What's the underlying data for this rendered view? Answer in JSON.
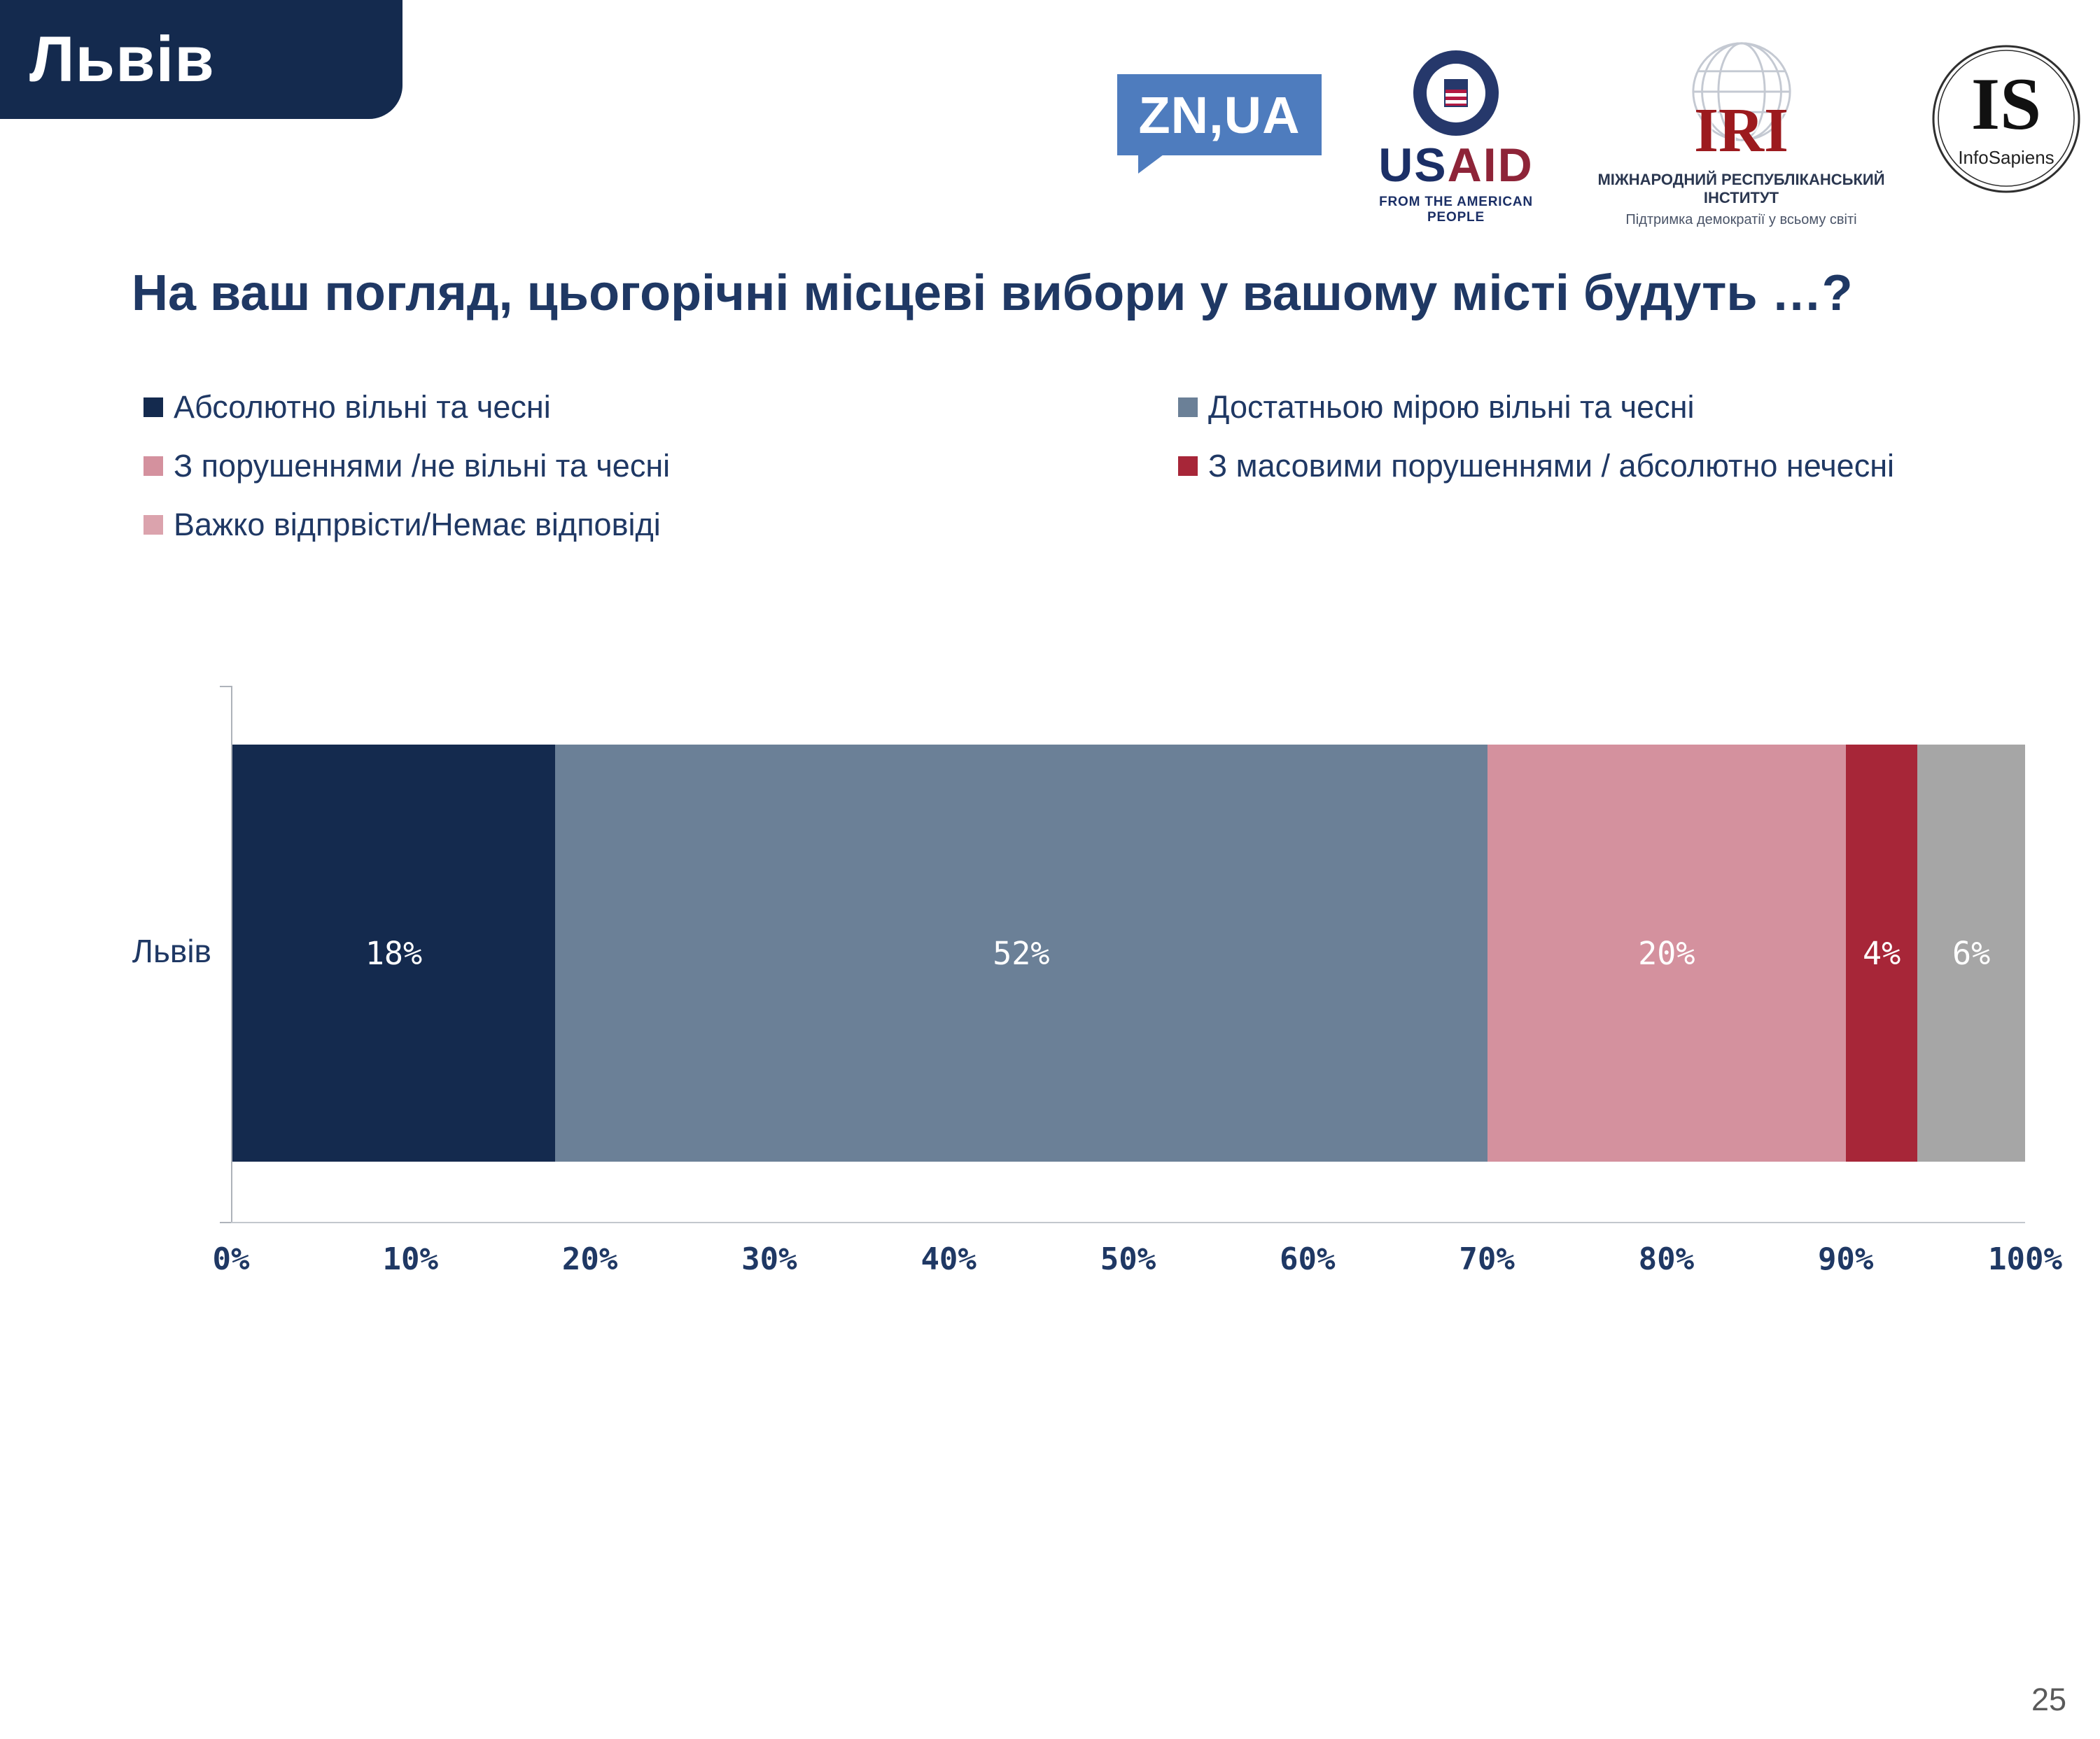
{
  "page": {
    "tab_title": "Львів",
    "page_number": "25"
  },
  "logos": {
    "znua": {
      "text": "ZN,UA"
    },
    "usaid": {
      "word_us": "US",
      "word_aid": "AID",
      "tagline": "FROM THE AMERICAN PEOPLE"
    },
    "iri": {
      "abbr": "IRI",
      "line1": "МІЖНАРОДНИЙ РЕСПУБЛІКАНСЬКИЙ ІНСТИТУТ",
      "line2": "Підтримка демократії у всьому світі"
    },
    "infosapiens": {
      "abbr": "IS",
      "name": "InfoSapiens"
    }
  },
  "question": "На ваш погляд, цьогорічні місцеві вибори у вашому місті будуть …?",
  "legend": [
    {
      "label": "Абсолютно вільні та чесні",
      "swatch": "#142a4e"
    },
    {
      "label": "Достатньою мірою вільні та чесні",
      "swatch": "#6b8097"
    },
    {
      "label": "З порушеннями /не вільні та чесні",
      "swatch": "#d4919e"
    },
    {
      "label": "З масовими порушеннями / абсолютно нечесні",
      "swatch": "#a72638"
    },
    {
      "label": "Важко відпрвісти/Немає відповіді",
      "swatch": "#dba3ad"
    }
  ],
  "chart_data": {
    "type": "bar",
    "orientation": "horizontal_stacked",
    "title": "На ваш погляд, цьогорічні місцеві вибори у вашому місті будуть …?",
    "categories": [
      "Львів"
    ],
    "series": [
      {
        "name": "Абсолютно вільні та чесні",
        "values": [
          18
        ],
        "color": "#142a4e"
      },
      {
        "name": "Достатньою мірою вільні та чесні",
        "values": [
          52
        ],
        "color": "#6b8097"
      },
      {
        "name": "З порушеннями /не вільні та чесні",
        "values": [
          20
        ],
        "color": "#d4919e"
      },
      {
        "name": "З масовими порушеннями / абсолютно нечесні",
        "values": [
          4
        ],
        "color": "#a72638"
      },
      {
        "name": "Важко відпрвісти/Немає відповіді",
        "values": [
          6
        ],
        "color": "#a6a6a6"
      }
    ],
    "data_labels": [
      "18%",
      "52%",
      "20%",
      "4%",
      "6%"
    ],
    "x_ticks": [
      "0%",
      "10%",
      "20%",
      "30%",
      "40%",
      "50%",
      "60%",
      "70%",
      "80%",
      "90%",
      "100%"
    ],
    "xlim": [
      0,
      100
    ],
    "grid": false,
    "legend_position": "top"
  }
}
